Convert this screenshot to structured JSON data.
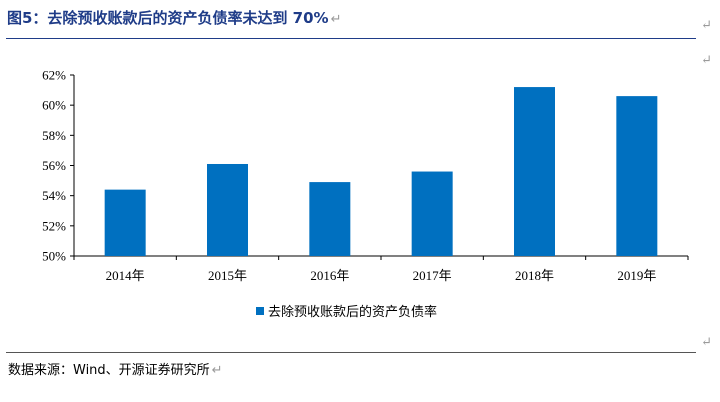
{
  "figure": {
    "title": "图5：去除预收账款后的资产负债率未达到 70%",
    "return_mark": "↵",
    "source": "数据来源：Wind、开源证券研究所"
  },
  "colors": {
    "bar": "#0070c0",
    "title": "#1f3c88",
    "axis": "#000000"
  },
  "chart_data": {
    "type": "bar",
    "categories": [
      "2014年",
      "2015年",
      "2016年",
      "2017年",
      "2018年",
      "2019年"
    ],
    "series": [
      {
        "name": "去除预收账款后的资产负债率",
        "values": [
          54.4,
          56.1,
          54.9,
          55.6,
          61.2,
          60.6
        ]
      }
    ],
    "ylim": [
      50,
      62
    ],
    "yticks": [
      50,
      52,
      54,
      56,
      58,
      60,
      62
    ],
    "ytick_labels": [
      "50%",
      "52%",
      "54%",
      "56%",
      "58%",
      "60%",
      "62%"
    ],
    "xlabel": "",
    "ylabel": "",
    "grid": false,
    "legend": "bottom-center"
  }
}
